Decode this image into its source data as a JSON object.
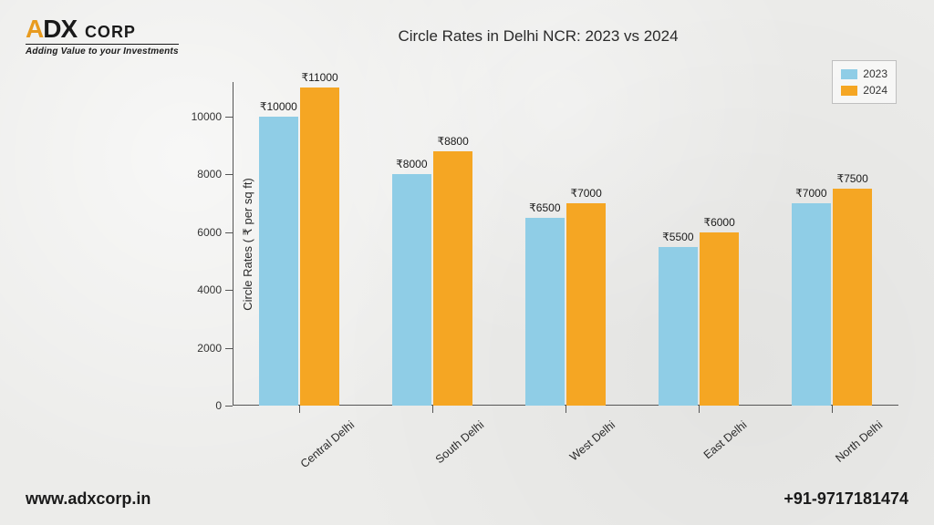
{
  "logo": {
    "brand": "ADX CORP",
    "tagline": "Adding Value to your Investments"
  },
  "footer": {
    "website": "www.adxcorp.in",
    "phone": "+91-9717181474"
  },
  "chart": {
    "type": "bar",
    "title": "Circle Rates in Delhi NCR: 2023 vs 2024",
    "ylabel": "Circle Rates ( ₹ per sq ft)",
    "title_fontsize": 17,
    "label_fontsize": 13,
    "tick_fontsize": 12,
    "categories": [
      "Central Delhi",
      "South Delhi",
      "West Delhi",
      "East Delhi",
      "North Delhi"
    ],
    "series": [
      {
        "name": "2023",
        "color": "#8fcde6",
        "values": [
          10000,
          8000,
          6500,
          5500,
          7000
        ]
      },
      {
        "name": "2024",
        "color": "#f5a623",
        "values": [
          11000,
          8800,
          7000,
          6000,
          7500
        ]
      }
    ],
    "value_prefix": "₹",
    "ylim": [
      0,
      11200
    ],
    "ytick_step": 2000,
    "yticks": [
      0,
      2000,
      4000,
      6000,
      8000,
      10000
    ],
    "bar_group_width": 0.6,
    "bar_gap": 0.02,
    "axis_color": "#555555",
    "text_color": "#2a2a2a",
    "legend_border": "#bfbfbf",
    "xtick_rotation": -40
  }
}
